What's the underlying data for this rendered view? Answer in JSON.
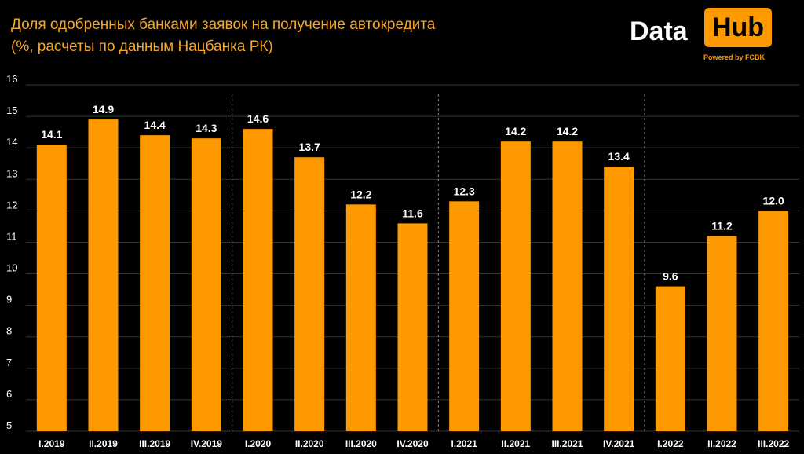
{
  "title_line1": "Доля одобренных банками заявок на получение автокредита",
  "title_line2": "(%, расчеты по данным Нацбанка РК)",
  "logo": {
    "word": "Data",
    "box_word": "Hub",
    "tagline": "Powered by FCBK"
  },
  "colors": {
    "bar": "#FF9900",
    "title": "#F5A623",
    "background": "#000000",
    "grid": "#333333"
  },
  "chart_data": {
    "type": "bar",
    "title": "Доля одобренных банками заявок на получение автокредита",
    "subtitle": "(%, расчеты по данным Нацбанка РК)",
    "xlabel": "",
    "ylabel": "",
    "ylim": [
      5,
      16
    ],
    "yticks": [
      5,
      6,
      7,
      8,
      9,
      10,
      11,
      12,
      13,
      14,
      15,
      16
    ],
    "grid": true,
    "categories": [
      "I.2019",
      "II.2019",
      "III.2019",
      "IV.2019",
      "I.2020",
      "II.2020",
      "III.2020",
      "IV.2020",
      "I.2021",
      "II.2021",
      "III.2021",
      "IV.2021",
      "I.2022",
      "II.2022",
      "III.2022"
    ],
    "values": [
      14.1,
      14.9,
      14.4,
      14.3,
      14.6,
      13.7,
      12.2,
      11.6,
      12.3,
      14.2,
      14.2,
      13.4,
      9.6,
      11.2,
      12.0
    ],
    "value_labels": [
      "14.1",
      "14.9",
      "14.4",
      "14.3",
      "14.6",
      "13.7",
      "12.2",
      "11.6",
      "12.3",
      "14.2",
      "14.2",
      "13.4",
      "9.6",
      "11.2",
      "12.0"
    ],
    "year_separators_after": [
      3,
      7,
      11
    ]
  }
}
